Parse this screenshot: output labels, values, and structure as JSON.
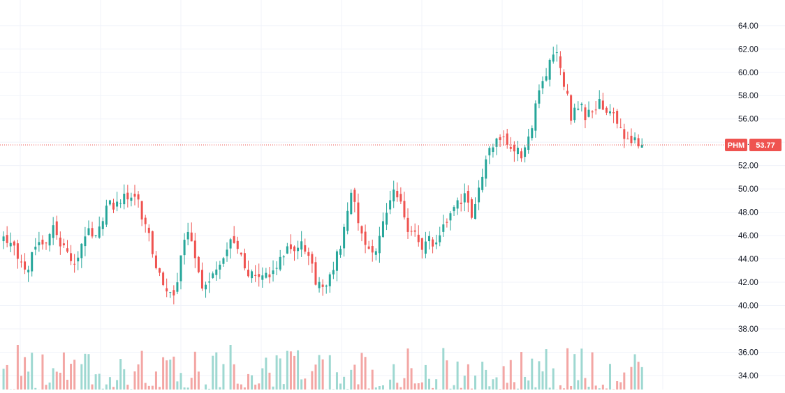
{
  "chart_data": {
    "type": "candlestick",
    "symbol": "PHM",
    "last_price": 53.77,
    "last_price_label": "53.77",
    "y_ticks": [
      "64.00",
      "62.00",
      "60.00",
      "58.00",
      "56.00",
      "54.00",
      "52.00",
      "50.00",
      "48.00",
      "46.00",
      "44.00",
      "42.00",
      "40.00",
      "38.00",
      "36.00",
      "34.00"
    ],
    "ylim": [
      32.8,
      66.2
    ],
    "grid": true,
    "colors": {
      "up": "#26a69a",
      "down": "#ef5350",
      "up_volume": "#9ed8d1",
      "down_volume": "#f3a6a4",
      "price_line": "#ef5350",
      "grid": "#f0f3fa",
      "axis_text": "#131722"
    },
    "anchors": [
      46.3,
      45.2,
      44.1,
      42.8,
      44.2,
      45.3,
      45.6,
      46.8,
      45.6,
      44.2,
      43.9,
      45.2,
      46.3,
      46.0,
      47.7,
      48.8,
      48.7,
      49.4,
      48.8,
      48.9,
      46.6,
      44.8,
      42.4,
      41.1,
      41.2,
      43.8,
      46.4,
      44.3,
      41.2,
      42.4,
      43.6,
      44.5,
      45.4,
      45.0,
      43.5,
      42.6,
      42.3,
      43.0,
      42.5,
      44.5,
      45.0,
      45.2,
      45.5,
      44.2,
      42.3,
      41.3,
      42.8,
      44.3,
      46.4,
      49.6,
      47.4,
      45.1,
      44.1,
      46.0,
      48.0,
      49.5,
      48.6,
      46.5,
      46.6,
      45.0,
      45.6,
      45.2,
      46.7,
      47.8,
      48.8,
      49.4,
      47.6,
      50.2,
      52.8,
      53.7,
      54.2,
      53.9,
      53.5,
      53.0,
      54.2,
      57.0,
      59.0,
      60.8,
      61.7,
      59.0,
      56.3,
      57.2,
      56.4,
      56.6,
      57.6,
      57.0,
      56.2,
      55.1,
      54.2,
      53.9,
      53.8
    ],
    "x_range": [
      -1,
      203
    ],
    "avg_volume": 0.5
  }
}
